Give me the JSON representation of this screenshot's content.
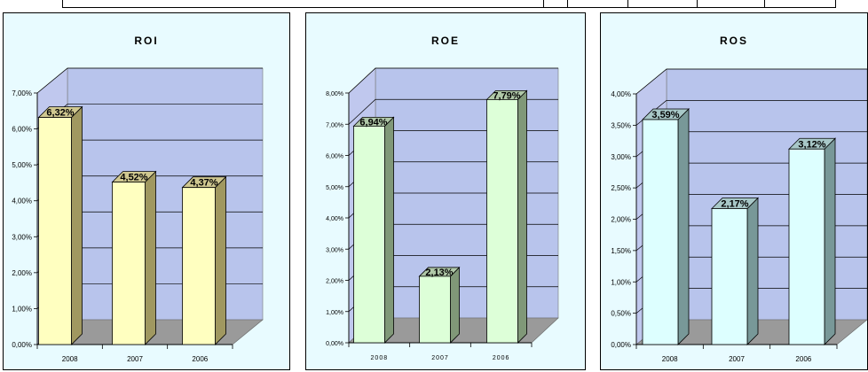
{
  "chart_data": [
    {
      "type": "bar",
      "title": "ROI",
      "categories": [
        "2008",
        "2007",
        "2006"
      ],
      "values": [
        6.32,
        4.52,
        4.37
      ],
      "value_labels": [
        "6,32%",
        "4,52%",
        "4,37%"
      ],
      "y_ticks": [
        "0,00%",
        "1,00%",
        "2,00%",
        "3,00%",
        "4,00%",
        "5,00%",
        "6,00%",
        "7,00%"
      ],
      "ylim": [
        0,
        7
      ],
      "grid": true,
      "colors": {
        "bar_front": "#ffffc0",
        "bar_side": "#a09860",
        "bar_top": "#d0c890"
      }
    },
    {
      "type": "bar",
      "title": "ROE",
      "categories": [
        "2008",
        "2007",
        "2006"
      ],
      "values": [
        6.94,
        2.13,
        7.79
      ],
      "value_labels": [
        "6,94%",
        "2,13%",
        "7,79%"
      ],
      "y_ticks": [
        "0,00%",
        "1,00%",
        "2,00%",
        "3,00%",
        "4,00%",
        "5,00%",
        "6,00%",
        "7,00%",
        "8,00%"
      ],
      "ylim": [
        0,
        8
      ],
      "grid": true,
      "colors": {
        "bar_front": "#ddffd8",
        "bar_side": "#809878",
        "bar_top": "#b0c8a8"
      }
    },
    {
      "type": "bar",
      "title": "ROS",
      "categories": [
        "2008",
        "2007",
        "2006"
      ],
      "values": [
        3.59,
        2.17,
        3.12
      ],
      "value_labels": [
        "3,59%",
        "2,17%",
        "3,12%"
      ],
      "y_ticks": [
        "0,00%",
        "0,50%",
        "1,00%",
        "1,50%",
        "2,00%",
        "2,50%",
        "3,00%",
        "3,50%",
        "4,00%"
      ],
      "ylim": [
        0,
        4
      ],
      "grid": true,
      "colors": {
        "bar_front": "#ddffff",
        "bar_side": "#789898",
        "bar_top": "#a8c8c8"
      }
    }
  ],
  "colors": {
    "back_wall": "#b8c4ec",
    "floor": "#9a9a9a",
    "panel_bg": "#e8fbff"
  }
}
